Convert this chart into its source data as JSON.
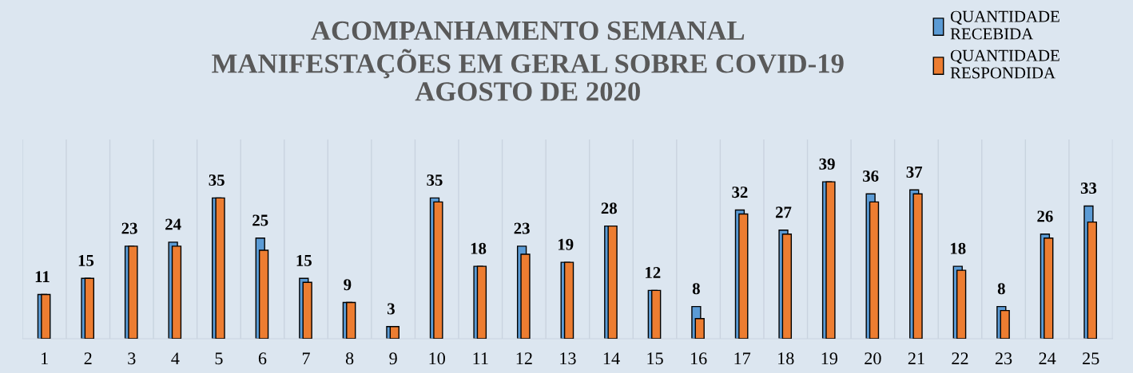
{
  "chart_data": {
    "type": "bar",
    "title": "ACOMPANHAMENTO SEMANAL\nMANIFESTAÇÕES EM GERAL SOBRE COVID-19\nAGOSTO DE 2020",
    "categories": [
      "1",
      "2",
      "3",
      "4",
      "5",
      "6",
      "7",
      "8",
      "9",
      "10",
      "11",
      "12",
      "13",
      "14",
      "15",
      "16",
      "17",
      "18",
      "19",
      "20",
      "21",
      "22",
      "23",
      "24",
      "25"
    ],
    "series": [
      {
        "name": "QUANTIDADE RECEBIDA",
        "color": "#5b9bd5",
        "values": [
          11,
          15,
          23,
          24,
          35,
          25,
          15,
          9,
          3,
          35,
          18,
          23,
          19,
          28,
          12,
          8,
          32,
          27,
          39,
          36,
          37,
          18,
          8,
          26,
          33
        ],
        "value_labels": [
          "11",
          "15",
          "23",
          "24",
          "35",
          "25",
          "15",
          "9",
          "3",
          "35",
          "18",
          "23",
          "19",
          "28",
          "12",
          "8",
          "32",
          "27",
          "39",
          "36",
          "37",
          "18",
          "8",
          "26",
          "33"
        ]
      },
      {
        "name": "QUANTIDADE RESPONDIDA",
        "color": "#ed7d31",
        "values": [
          11,
          15,
          23,
          23,
          35,
          22,
          14,
          9,
          3,
          34,
          18,
          21,
          19,
          28,
          12,
          5,
          31,
          26,
          39,
          34,
          36,
          17,
          7,
          25,
          29
        ]
      }
    ],
    "grid": "x",
    "legend": "top right"
  }
}
